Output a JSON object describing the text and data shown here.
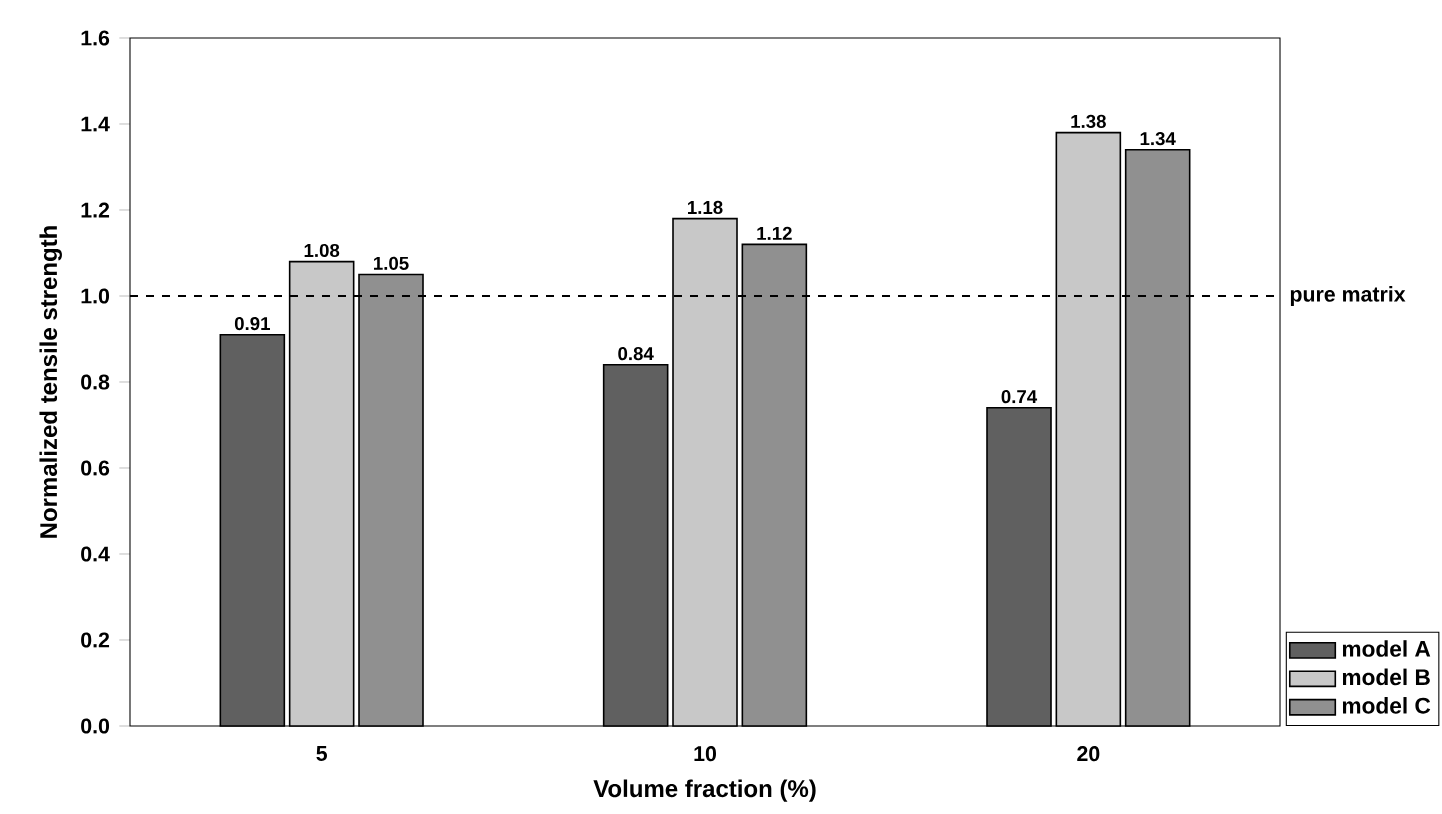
{
  "chart_data": {
    "type": "bar",
    "xlabel": "Volume fraction (%)",
    "ylabel": "Normalized tensile strength",
    "categories": [
      "5",
      "10",
      "20"
    ],
    "series": [
      {
        "name": "model A",
        "color": "#606060",
        "values": [
          0.91,
          0.84,
          0.74
        ]
      },
      {
        "name": "model B",
        "color": "#c8c8c8",
        "values": [
          1.08,
          1.18,
          1.38
        ]
      },
      {
        "name": "model C",
        "color": "#909090",
        "values": [
          1.05,
          1.12,
          1.34
        ]
      }
    ],
    "ylim": [
      0,
      1.6
    ],
    "yticks": [
      {
        "value": 0,
        "label": "0.0"
      },
      {
        "value": 0.2,
        "label": "0.2"
      },
      {
        "value": 0.4,
        "label": "0.4"
      },
      {
        "value": 0.6,
        "label": "0.6"
      },
      {
        "value": 0.8,
        "label": "0.8"
      },
      {
        "value": 1,
        "label": "1.0"
      },
      {
        "value": 1.2,
        "label": "1.2"
      },
      {
        "value": 1.4,
        "label": "1.4"
      },
      {
        "value": 1.6,
        "label": "1.6"
      }
    ],
    "ref_lines": [
      {
        "axis": "y",
        "value": 1,
        "label": "pure matrix",
        "line_style": "dashed",
        "color": "#000000"
      }
    ],
    "data_labels": true,
    "legend": "bottom right"
  }
}
